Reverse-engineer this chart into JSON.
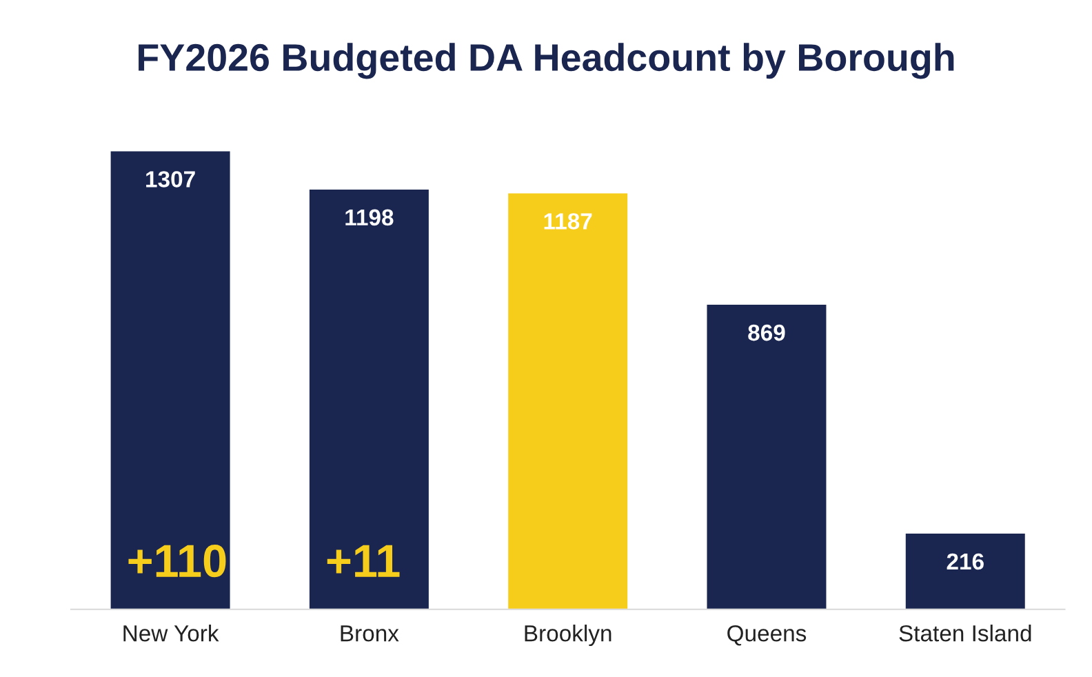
{
  "chart_data": {
    "type": "bar",
    "title": "FY2026 Budgeted DA Headcount by Borough",
    "categories": [
      "New York",
      "Bronx",
      "Brooklyn",
      "Queens",
      "Staten Island"
    ],
    "values": [
      1307,
      1198,
      1187,
      869,
      216
    ],
    "colors": [
      "#1b2650",
      "#1b2650",
      "#f7cd1c",
      "#1b2650",
      "#1b2650"
    ],
    "data_labels": true,
    "annotations": [
      "+110",
      "+11"
    ],
    "grid": false,
    "legend": false
  }
}
